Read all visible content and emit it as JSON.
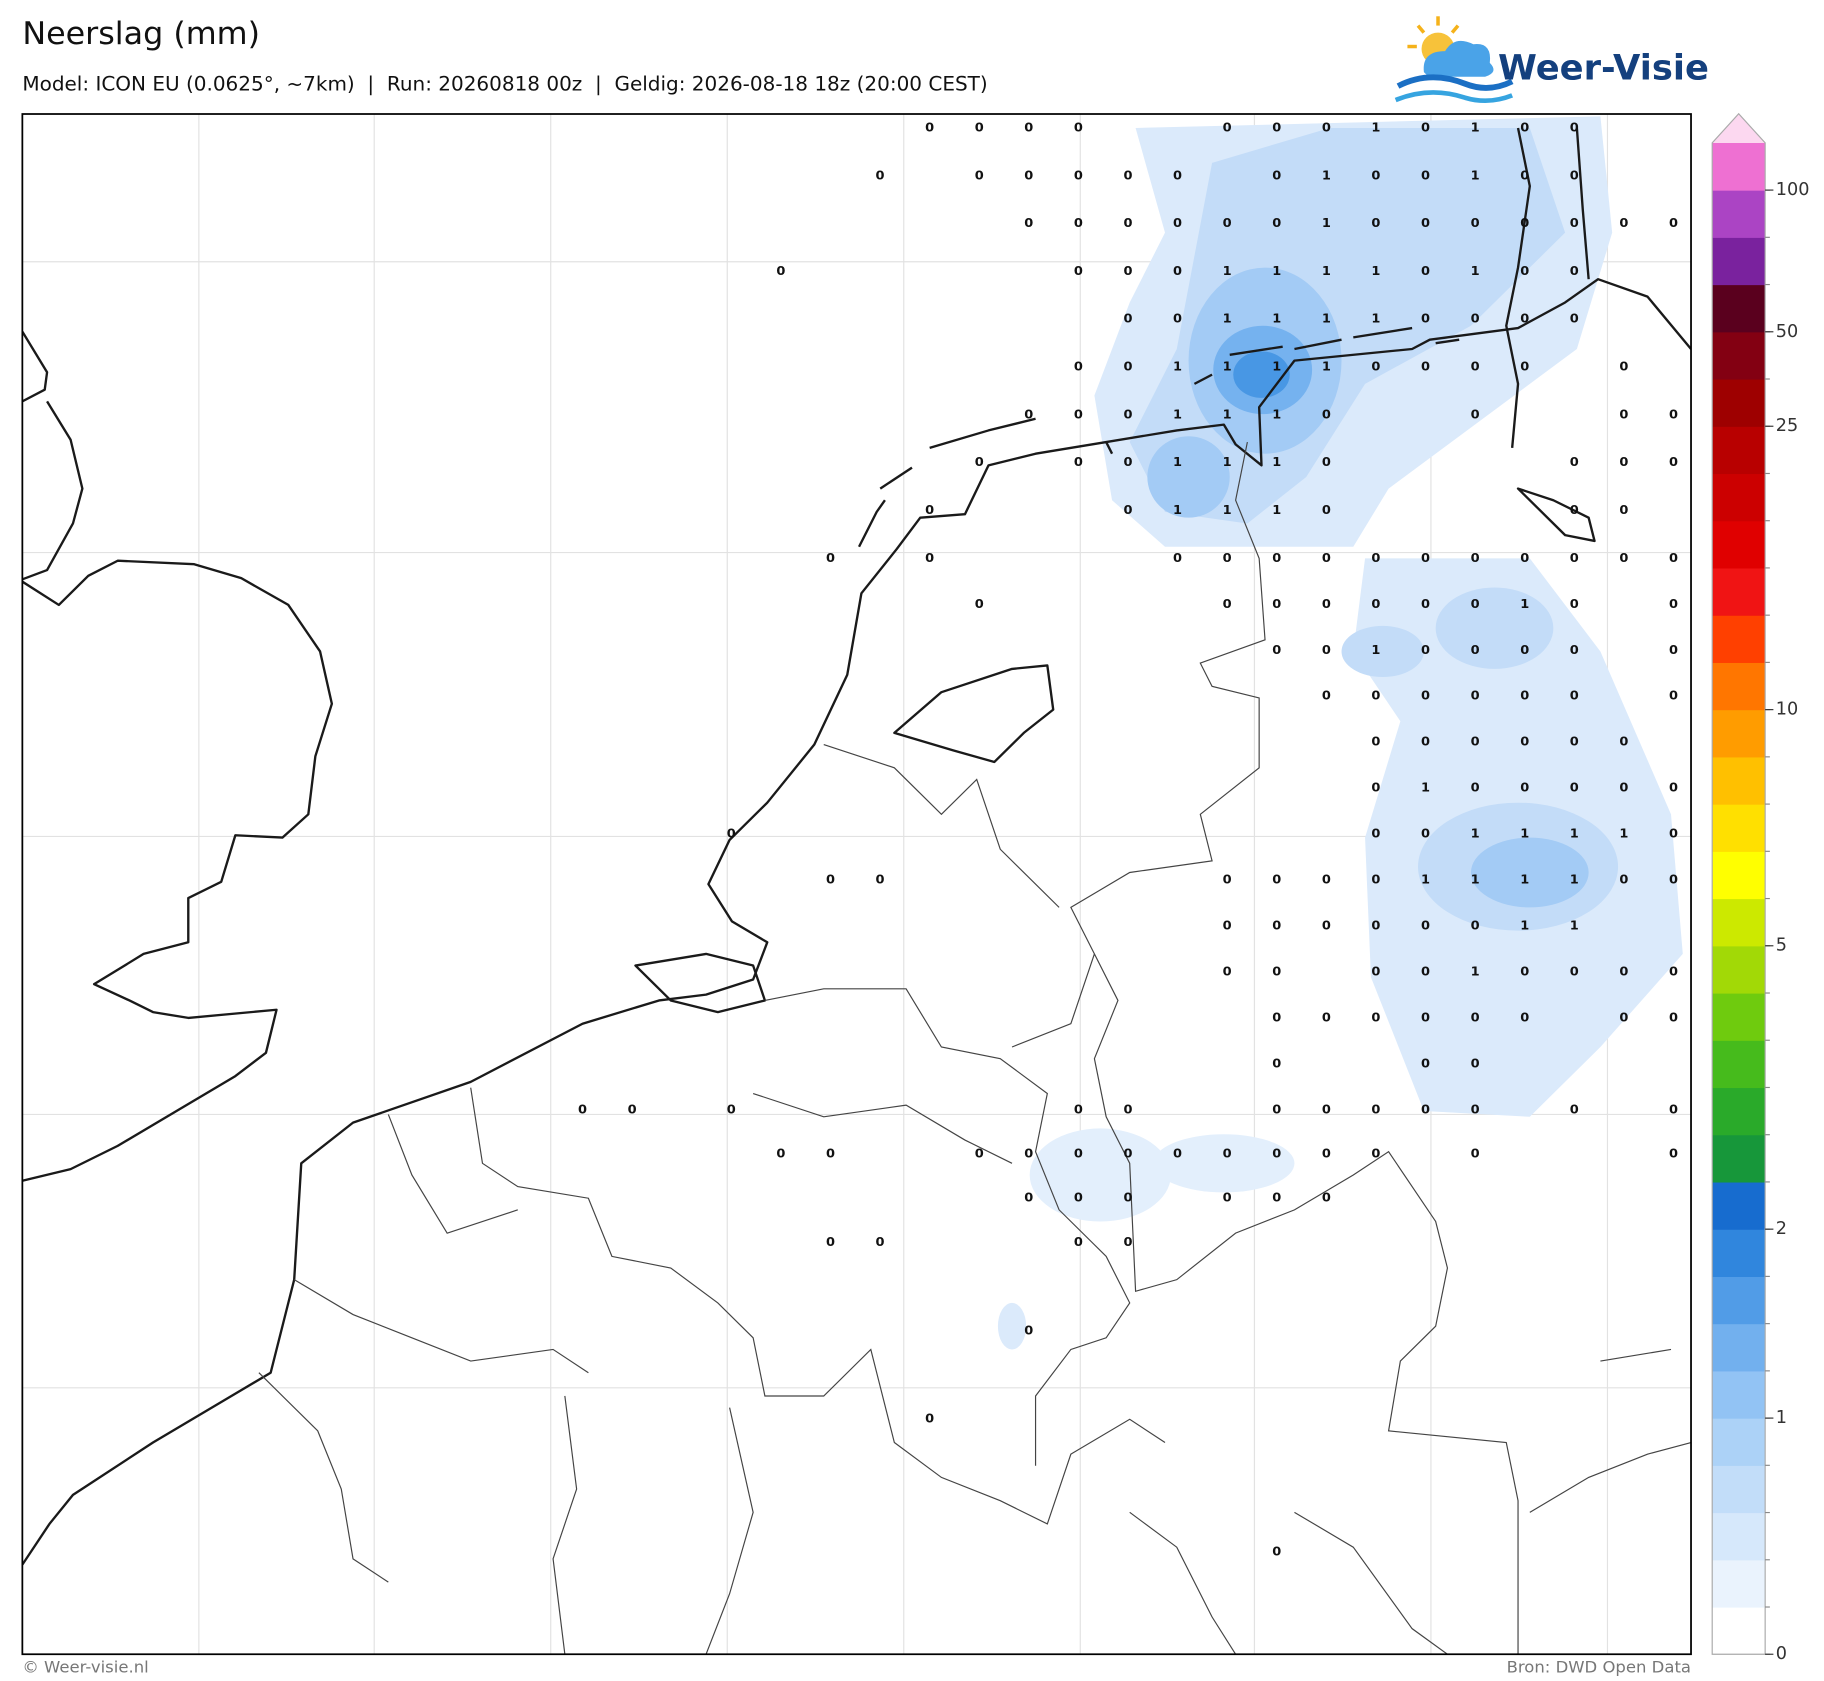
{
  "header": {
    "title": "Neerslag (mm)",
    "subtitle": "Model: ICON EU (0.0625°, ~7km)  |  Run: 20260818 00z  |  Geldig: 2026-08-18 18z (20:00 CEST)",
    "logo": "Weer-Visie"
  },
  "map": {
    "grid_values": [
      [
        null,
        null,
        null,
        null,
        null,
        null,
        null,
        0,
        0,
        0,
        0,
        null,
        null,
        0,
        0,
        0,
        1,
        0,
        1,
        0,
        0,
        null,
        null
      ],
      [
        null,
        null,
        null,
        null,
        null,
        null,
        0,
        null,
        0,
        0,
        0,
        0,
        0,
        null,
        0,
        1,
        0,
        0,
        1,
        0,
        0,
        null,
        null
      ],
      [
        null,
        null,
        null,
        null,
        null,
        null,
        null,
        null,
        null,
        0,
        0,
        0,
        0,
        0,
        0,
        1,
        0,
        0,
        0,
        0,
        0,
        0,
        0
      ],
      [
        null,
        null,
        null,
        null,
        0,
        null,
        null,
        null,
        null,
        null,
        0,
        0,
        0,
        1,
        1,
        1,
        1,
        0,
        1,
        0,
        0,
        null,
        null
      ],
      [
        null,
        null,
        null,
        null,
        null,
        null,
        null,
        null,
        null,
        null,
        null,
        0,
        0,
        1,
        1,
        1,
        1,
        0,
        0,
        0,
        0,
        null,
        null
      ],
      [
        null,
        null,
        null,
        null,
        null,
        null,
        null,
        null,
        null,
        null,
        0,
        0,
        1,
        1,
        1,
        1,
        0,
        0,
        0,
        0,
        null,
        0,
        null
      ],
      [
        null,
        null,
        null,
        null,
        null,
        null,
        null,
        null,
        null,
        0,
        0,
        0,
        1,
        1,
        1,
        0,
        null,
        null,
        0,
        null,
        null,
        0,
        0
      ],
      [
        null,
        null,
        null,
        null,
        null,
        null,
        null,
        null,
        0,
        null,
        0,
        0,
        1,
        1,
        1,
        0,
        null,
        null,
        null,
        null,
        0,
        0,
        0
      ],
      [
        null,
        null,
        null,
        null,
        null,
        null,
        null,
        0,
        null,
        null,
        null,
        0,
        1,
        1,
        1,
        0,
        null,
        null,
        null,
        null,
        0,
        0,
        null
      ],
      [
        null,
        null,
        null,
        null,
        null,
        0,
        null,
        0,
        null,
        null,
        null,
        null,
        0,
        0,
        0,
        0,
        0,
        0,
        0,
        0,
        0,
        0,
        0
      ],
      [
        null,
        null,
        null,
        null,
        null,
        null,
        null,
        null,
        0,
        null,
        null,
        null,
        null,
        0,
        0,
        0,
        0,
        0,
        0,
        1,
        0,
        null,
        0
      ],
      [
        null,
        null,
        null,
        null,
        null,
        null,
        null,
        null,
        null,
        null,
        null,
        null,
        null,
        null,
        0,
        0,
        1,
        0,
        0,
        0,
        0,
        null,
        0
      ],
      [
        null,
        null,
        null,
        null,
        null,
        null,
        null,
        null,
        null,
        null,
        null,
        null,
        null,
        null,
        null,
        0,
        0,
        0,
        0,
        0,
        0,
        null,
        0
      ],
      [
        null,
        null,
        null,
        null,
        null,
        null,
        null,
        null,
        null,
        null,
        null,
        null,
        null,
        null,
        null,
        null,
        0,
        0,
        0,
        0,
        0,
        0,
        null
      ],
      [
        null,
        null,
        null,
        null,
        null,
        null,
        null,
        null,
        null,
        null,
        null,
        null,
        null,
        null,
        null,
        null,
        0,
        1,
        0,
        0,
        0,
        0,
        0
      ],
      [
        null,
        null,
        null,
        0,
        null,
        null,
        null,
        null,
        null,
        null,
        null,
        null,
        null,
        null,
        null,
        null,
        0,
        0,
        1,
        1,
        1,
        1,
        0
      ],
      [
        null,
        null,
        null,
        null,
        null,
        0,
        0,
        null,
        null,
        null,
        null,
        null,
        null,
        0,
        0,
        0,
        0,
        1,
        1,
        1,
        1,
        0,
        0
      ],
      [
        null,
        null,
        null,
        null,
        null,
        null,
        null,
        null,
        null,
        null,
        null,
        null,
        null,
        0,
        0,
        0,
        0,
        0,
        0,
        1,
        1,
        null,
        null
      ],
      [
        null,
        null,
        null,
        null,
        null,
        null,
        null,
        null,
        null,
        null,
        null,
        null,
        null,
        0,
        0,
        null,
        0,
        0,
        1,
        0,
        0,
        0,
        0
      ],
      [
        null,
        null,
        null,
        null,
        null,
        null,
        null,
        null,
        null,
        null,
        null,
        null,
        null,
        null,
        0,
        0,
        0,
        0,
        0,
        0,
        null,
        0,
        0
      ],
      [
        null,
        null,
        null,
        null,
        null,
        null,
        null,
        null,
        null,
        null,
        null,
        null,
        null,
        null,
        0,
        null,
        null,
        0,
        0,
        null,
        null,
        null,
        null
      ],
      [
        0,
        0,
        null,
        0,
        null,
        null,
        null,
        null,
        null,
        null,
        0,
        0,
        null,
        null,
        0,
        0,
        0,
        0,
        0,
        null,
        0,
        null,
        0
      ],
      [
        null,
        null,
        null,
        null,
        0,
        0,
        null,
        null,
        0,
        0,
        0,
        0,
        0,
        0,
        0,
        0,
        0,
        null,
        0,
        null,
        null,
        null,
        0
      ],
      [
        null,
        null,
        null,
        null,
        null,
        null,
        null,
        null,
        null,
        0,
        0,
        0,
        null,
        0,
        0,
        0,
        null,
        null,
        null,
        null,
        null,
        null,
        null
      ],
      [
        null,
        null,
        null,
        null,
        null,
        0,
        0,
        null,
        null,
        null,
        0,
        0,
        null,
        null,
        null,
        null,
        null,
        null,
        null,
        null,
        null,
        null,
        null
      ],
      [
        null,
        null,
        null,
        null,
        null,
        null,
        null,
        null,
        null,
        null,
        null,
        null,
        null,
        null,
        null,
        null,
        null,
        null,
        null,
        null,
        null,
        null,
        null
      ],
      [
        null,
        null,
        null,
        null,
        null,
        null,
        null,
        null,
        null,
        0,
        null,
        null,
        null,
        null,
        null,
        null,
        null,
        null,
        null,
        null,
        null,
        null,
        null
      ],
      [
        null,
        null,
        null,
        null,
        null,
        null,
        null,
        null,
        null,
        null,
        null,
        null,
        null,
        null,
        null,
        null,
        null,
        null,
        null,
        null,
        null,
        null,
        null
      ],
      [
        null,
        null,
        null,
        null,
        null,
        null,
        null,
        0,
        null,
        null,
        null,
        null,
        null,
        null,
        null,
        null,
        null,
        null,
        null,
        null,
        null,
        null,
        null
      ],
      [
        null,
        null,
        null,
        null,
        null,
        null,
        null,
        null,
        null,
        null,
        null,
        null,
        null,
        null,
        null,
        null,
        null,
        null,
        null,
        null,
        null,
        null,
        null
      ],
      [
        null,
        null,
        null,
        null,
        null,
        null,
        null,
        null,
        null,
        null,
        null,
        null,
        null,
        null,
        null,
        null,
        null,
        null,
        null,
        null,
        null,
        null,
        null
      ],
      [
        null,
        null,
        null,
        null,
        null,
        null,
        null,
        null,
        null,
        null,
        null,
        null,
        null,
        null,
        0,
        null,
        null,
        null,
        null,
        null,
        null,
        null,
        null
      ]
    ]
  },
  "colorbar": {
    "levels": [
      0,
      0.2,
      0.4,
      0.6,
      0.8,
      1,
      1.25,
      1.5,
      1.75,
      2,
      2.5,
      3,
      3.5,
      4,
      4.5,
      5,
      6,
      7,
      8,
      9,
      10,
      12.5,
      15,
      17.5,
      20,
      22.5,
      25,
      37.5,
      50,
      65,
      80,
      100
    ],
    "colors": [
      "#ffffff",
      "#eaf3fd",
      "#d6e8fb",
      "#c2ddf9",
      "#acd2f7",
      "#92c3f4",
      "#72b0ee",
      "#519ce7",
      "#3086dd",
      "#176ccf",
      "#17973a",
      "#2aaa2a",
      "#46bb1c",
      "#6fcb0e",
      "#a2d906",
      "#cce900",
      "#ffff00",
      "#ffe000",
      "#ffc000",
      "#ff9c00",
      "#ff7600",
      "#ff4000",
      "#f01414",
      "#e00000",
      "#cc0000",
      "#b80000",
      "#9e0000",
      "#830012",
      "#5a001e",
      "#7a229e",
      "#ab44c4"
    ],
    "extend_color": "#ee70d2",
    "over_color": "#fcd8f0",
    "ticks": [
      0,
      1,
      2,
      5,
      10,
      25,
      50,
      100
    ]
  },
  "footer": {
    "credit": "© Weer-visie.nl",
    "source": "Bron: DWD Open Data"
  }
}
